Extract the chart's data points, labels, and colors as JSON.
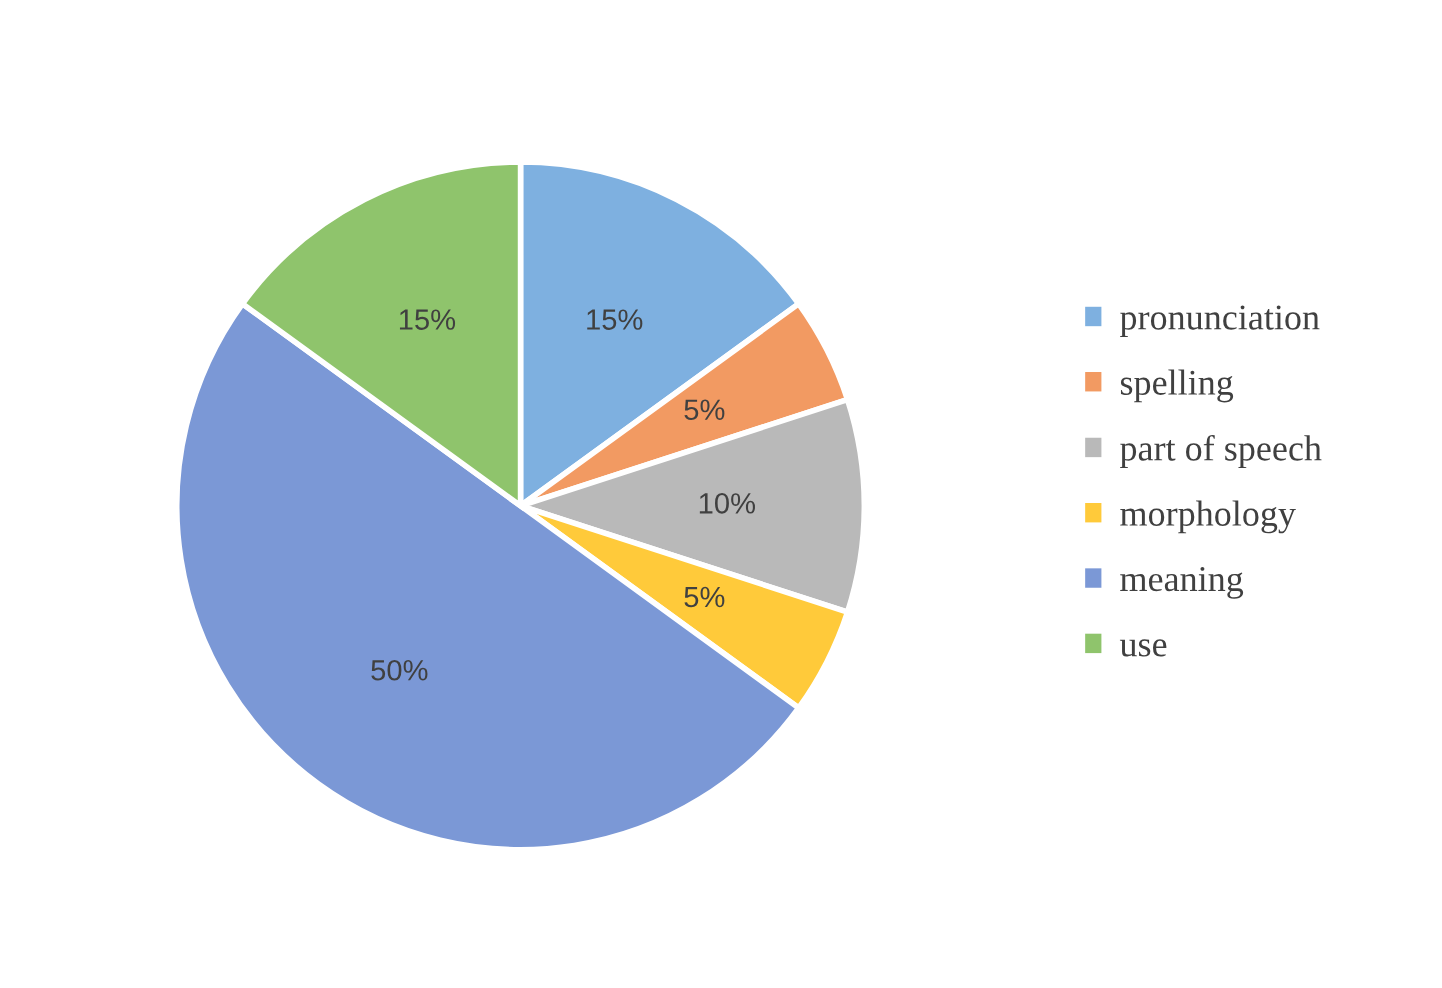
{
  "chart_data": {
    "type": "pie",
    "categories": [
      "pronunciation",
      "spelling",
      "part of speech",
      "morphology",
      "meaning",
      "use"
    ],
    "values": [
      15,
      5,
      10,
      5,
      50,
      15
    ],
    "value_labels": [
      "15%",
      "5%",
      "10%",
      "5%",
      "50%",
      "15%"
    ],
    "colors": [
      "#7eb0e0",
      "#f29a62",
      "#b9b9b9",
      "#ffca3a",
      "#7b98d6",
      "#8fc46c"
    ],
    "legend": "right"
  }
}
